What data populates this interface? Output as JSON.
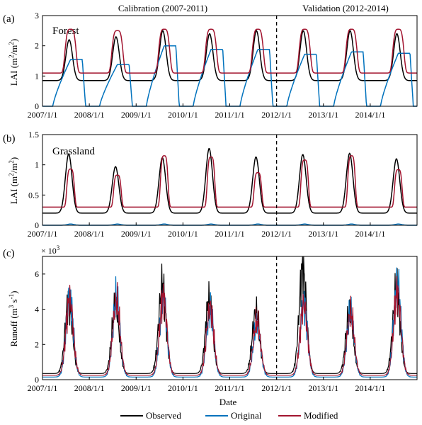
{
  "header": {
    "calibration": "Calibration (2007-2011)",
    "validation": "Validation (2012-2014)"
  },
  "colors": {
    "observed": "#000000",
    "original": "#0072BD",
    "modified": "#A2142F",
    "divider": "#000000"
  },
  "legend": {
    "observed": "Observed",
    "original": "Original",
    "modified": "Modified"
  },
  "chart_data": [
    {
      "id": "a",
      "panel_label": "(a)",
      "inset_label": "Forest",
      "type": "line",
      "ylabel": "LAI (m²/m²)",
      "xlim": [
        "2007/1/1",
        "2015/1/1"
      ],
      "ylim": [
        0,
        3
      ],
      "yticks": [
        "0",
        "1",
        "2",
        "3"
      ],
      "xtick_labels": [
        "2007/1/1",
        "2008/1/1",
        "2009/1/1",
        "2010/1/1",
        "2011/1/1",
        "2012/1/1",
        "2013/1/1",
        "2014/1/1"
      ],
      "divider_x": "2012/1/1",
      "years": [
        2007,
        2008,
        2009,
        2010,
        2011,
        2012,
        2013,
        2014
      ],
      "series": [
        {
          "name": "Observed",
          "key": "observed",
          "base": 0.85,
          "peaks": [
            2.2,
            2.3,
            2.5,
            2.4,
            2.5,
            2.5,
            2.5,
            2.4
          ],
          "peak_date_frac": 0.57
        },
        {
          "name": "Original",
          "key": "original",
          "peaks": [
            1.55,
            1.38,
            2.0,
            1.88,
            1.88,
            1.72,
            1.8,
            1.75
          ],
          "rise_start_frac": 0.22,
          "peak_date_frac": 0.6
        },
        {
          "name": "Modified",
          "key": "modified",
          "base": 1.1,
          "peaks": [
            2.55,
            2.5,
            2.55,
            2.55,
            2.55,
            2.55,
            2.55,
            2.55
          ],
          "peak_date_frac": 0.6
        }
      ]
    },
    {
      "id": "b",
      "panel_label": "(b)",
      "inset_label": "Grassland",
      "type": "line",
      "ylabel": "LAI (m²/m²)",
      "xlim": [
        "2007/1/1",
        "2015/1/1"
      ],
      "ylim": [
        0,
        1.5
      ],
      "yticks": [
        "0",
        "0.5",
        "1",
        "1.5"
      ],
      "xtick_labels": [
        "2007/1/1",
        "2008/1/1",
        "2009/1/1",
        "2010/1/1",
        "2011/1/1",
        "2012/1/1",
        "2013/1/1",
        "2014/1/1"
      ],
      "divider_x": "2012/1/1",
      "years": [
        2007,
        2008,
        2009,
        2010,
        2011,
        2012,
        2013,
        2014
      ],
      "series": [
        {
          "name": "Observed",
          "key": "observed",
          "base": 0.2,
          "peaks": [
            1.18,
            0.97,
            1.12,
            1.27,
            1.13,
            1.17,
            1.19,
            1.1
          ],
          "peak_date_frac": 0.56
        },
        {
          "name": "Original",
          "key": "original",
          "base": 0.0,
          "peaks": [
            0.02,
            0.02,
            0.02,
            0.02,
            0.02,
            0.02,
            0.02,
            0.02
          ],
          "peak_date_frac": 0.6
        },
        {
          "name": "Modified",
          "key": "modified",
          "base": 0.3,
          "peaks": [
            0.93,
            0.83,
            1.15,
            1.13,
            0.87,
            1.08,
            1.15,
            0.92
          ],
          "peak_date_frac": 0.6
        }
      ]
    },
    {
      "id": "c",
      "panel_label": "(c)",
      "type": "line",
      "ylabel": "Runoff (m³ s⁻¹)",
      "xlabel": "Date",
      "y_multiplier": "× 10³",
      "xlim": [
        "2007/1/1",
        "2015/1/1"
      ],
      "ylim": [
        0,
        7
      ],
      "yticks": [
        "0",
        "2",
        "4",
        "6"
      ],
      "xtick_labels": [
        "2007/1/1",
        "2008/1/1",
        "2009/1/1",
        "2010/1/1",
        "2011/1/1",
        "2012/1/1",
        "2013/1/1",
        "2014/1/1"
      ],
      "divider_x": "2012/1/1",
      "years": [
        2007,
        2008,
        2009,
        2010,
        2011,
        2012,
        2013,
        2014
      ],
      "series": [
        {
          "name": "Observed",
          "key": "observed",
          "base": 0.35,
          "peaks": [
            4.5,
            4.2,
            5.4,
            4.5,
            3.9,
            6.4,
            3.9,
            5.2
          ],
          "peak_date_frac": 0.56
        },
        {
          "name": "Original",
          "key": "original",
          "base": 0.15,
          "peaks": [
            4.8,
            4.6,
            4.7,
            4.0,
            3.2,
            4.4,
            3.8,
            5.6
          ],
          "peak_date_frac": 0.58
        },
        {
          "name": "Modified",
          "key": "modified",
          "base": 0.25,
          "peaks": [
            4.6,
            4.5,
            4.7,
            4.1,
            3.3,
            4.3,
            3.8,
            5.0
          ],
          "peak_date_frac": 0.58
        }
      ]
    }
  ]
}
